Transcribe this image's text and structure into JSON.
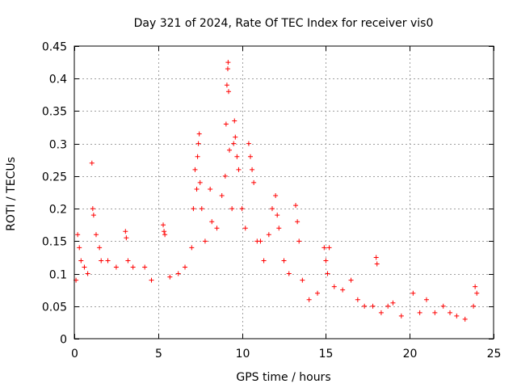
{
  "chart_data": {
    "type": "scatter",
    "title": "Day 321 of 2024, Rate Of TEC Index for receiver vis0",
    "xlabel": "GPS time / hours",
    "ylabel": "ROTI / TECUs",
    "xlim": [
      0,
      25
    ],
    "ylim": [
      0,
      0.45
    ],
    "x_ticks": [
      0,
      5,
      10,
      15,
      20,
      25
    ],
    "y_ticks": [
      0,
      0.05,
      0.1,
      0.15,
      0.2,
      0.25,
      0.3,
      0.35,
      0.4,
      0.45
    ],
    "x_tick_labels": [
      "0",
      "5",
      "10",
      "15",
      "20",
      "25"
    ],
    "y_tick_labels": [
      "0",
      "0.05",
      "0.1",
      "0.15",
      "0.2",
      "0.25",
      "0.3",
      "0.35",
      "0.4",
      "0.45"
    ],
    "grid": true,
    "marker": "+",
    "marker_color": "#ff0000",
    "series": [
      {
        "name": "ROTI",
        "points": [
          [
            0.1,
            0.09
          ],
          [
            0.2,
            0.16
          ],
          [
            0.3,
            0.14
          ],
          [
            0.4,
            0.12
          ],
          [
            0.6,
            0.11
          ],
          [
            0.8,
            0.1
          ],
          [
            1.05,
            0.27
          ],
          [
            1.1,
            0.2
          ],
          [
            1.15,
            0.19
          ],
          [
            1.3,
            0.16
          ],
          [
            1.5,
            0.14
          ],
          [
            1.6,
            0.12
          ],
          [
            2.0,
            0.12
          ],
          [
            2.5,
            0.11
          ],
          [
            3.05,
            0.165
          ],
          [
            3.1,
            0.155
          ],
          [
            3.2,
            0.12
          ],
          [
            3.5,
            0.11
          ],
          [
            4.2,
            0.11
          ],
          [
            4.6,
            0.09
          ],
          [
            5.3,
            0.175
          ],
          [
            5.35,
            0.165
          ],
          [
            5.4,
            0.16
          ],
          [
            5.7,
            0.095
          ],
          [
            6.2,
            0.1
          ],
          [
            6.6,
            0.11
          ],
          [
            7.0,
            0.14
          ],
          [
            7.1,
            0.2
          ],
          [
            7.2,
            0.26
          ],
          [
            7.3,
            0.23
          ],
          [
            7.35,
            0.28
          ],
          [
            7.4,
            0.3
          ],
          [
            7.45,
            0.315
          ],
          [
            7.5,
            0.24
          ],
          [
            7.6,
            0.2
          ],
          [
            7.8,
            0.15
          ],
          [
            8.1,
            0.23
          ],
          [
            8.2,
            0.18
          ],
          [
            8.5,
            0.17
          ],
          [
            8.8,
            0.22
          ],
          [
            9.0,
            0.25
          ],
          [
            9.05,
            0.33
          ],
          [
            9.1,
            0.39
          ],
          [
            9.15,
            0.415
          ],
          [
            9.17,
            0.425
          ],
          [
            9.2,
            0.38
          ],
          [
            9.25,
            0.29
          ],
          [
            9.4,
            0.2
          ],
          [
            9.5,
            0.3
          ],
          [
            9.55,
            0.335
          ],
          [
            9.6,
            0.31
          ],
          [
            9.7,
            0.28
          ],
          [
            9.8,
            0.26
          ],
          [
            10.0,
            0.2
          ],
          [
            10.2,
            0.17
          ],
          [
            10.4,
            0.3
          ],
          [
            10.5,
            0.28
          ],
          [
            10.6,
            0.26
          ],
          [
            10.7,
            0.24
          ],
          [
            10.9,
            0.15
          ],
          [
            11.1,
            0.15
          ],
          [
            11.3,
            0.12
          ],
          [
            11.6,
            0.16
          ],
          [
            11.8,
            0.2
          ],
          [
            12.0,
            0.22
          ],
          [
            12.1,
            0.19
          ],
          [
            12.2,
            0.17
          ],
          [
            12.5,
            0.12
          ],
          [
            12.8,
            0.1
          ],
          [
            13.2,
            0.205
          ],
          [
            13.3,
            0.18
          ],
          [
            13.4,
            0.15
          ],
          [
            13.6,
            0.09
          ],
          [
            14.0,
            0.06
          ],
          [
            14.5,
            0.07
          ],
          [
            14.9,
            0.14
          ],
          [
            15.0,
            0.12
          ],
          [
            15.1,
            0.1
          ],
          [
            15.2,
            0.14
          ],
          [
            15.5,
            0.08
          ],
          [
            16.0,
            0.075
          ],
          [
            16.5,
            0.09
          ],
          [
            16.9,
            0.06
          ],
          [
            17.3,
            0.05
          ],
          [
            17.8,
            0.05
          ],
          [
            18.0,
            0.125
          ],
          [
            18.05,
            0.115
          ],
          [
            18.3,
            0.04
          ],
          [
            18.7,
            0.05
          ],
          [
            19.0,
            0.055
          ],
          [
            19.5,
            0.035
          ],
          [
            20.2,
            0.07
          ],
          [
            20.6,
            0.04
          ],
          [
            21.0,
            0.06
          ],
          [
            21.5,
            0.04
          ],
          [
            22.0,
            0.05
          ],
          [
            22.4,
            0.04
          ],
          [
            22.8,
            0.035
          ],
          [
            23.3,
            0.03
          ],
          [
            23.8,
            0.05
          ],
          [
            23.9,
            0.08
          ],
          [
            24.0,
            0.07
          ]
        ]
      }
    ]
  }
}
